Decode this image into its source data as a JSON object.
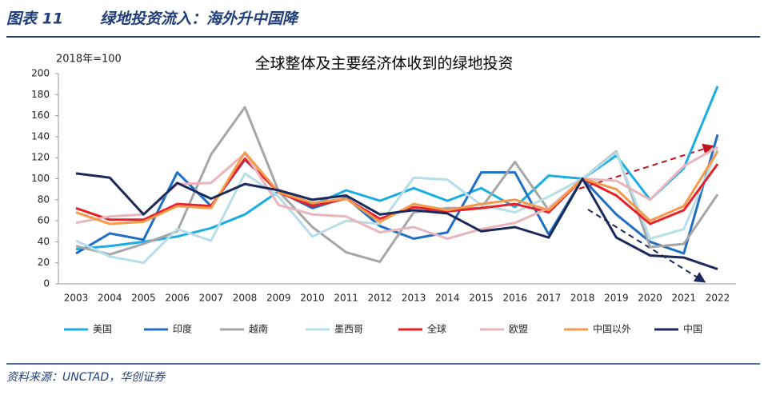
{
  "header": {
    "label": "图表 11",
    "title": "绿地投资流入：海外升中国降"
  },
  "source": "资料来源：UNCTAD，华创证券",
  "chart_data": {
    "type": "line",
    "title": "全球整体及主要经济体收到的绿地投资",
    "unit_label": "2018年=100",
    "categories": [
      "2003",
      "2004",
      "2005",
      "2006",
      "2007",
      "2008",
      "2009",
      "2010",
      "2011",
      "2012",
      "2013",
      "2014",
      "2015",
      "2016",
      "2017",
      "2018",
      "2019",
      "2020",
      "2021",
      "2022"
    ],
    "ylim": [
      0,
      200
    ],
    "yticks": [
      0,
      20,
      40,
      60,
      80,
      100,
      120,
      140,
      160,
      180,
      200
    ],
    "legend": "bottom",
    "series": [
      {
        "name": "美国",
        "color": "#1aade4",
        "values": [
          33,
          36,
          40,
          45,
          53,
          66,
          88,
          75,
          89,
          79,
          91,
          79,
          91,
          73,
          103,
          100,
          122,
          80,
          110,
          188
        ]
      },
      {
        "name": "印度",
        "color": "#1f6fc5",
        "values": [
          29,
          48,
          42,
          106,
          74,
          118,
          88,
          72,
          82,
          55,
          43,
          49,
          106,
          106,
          47,
          100,
          66,
          40,
          29,
          142
        ]
      },
      {
        "name": "越南",
        "color": "#a6a6a6",
        "values": [
          36,
          28,
          38,
          50,
          123,
          168,
          88,
          54,
          30,
          21,
          68,
          72,
          72,
          116,
          70,
          100,
          126,
          35,
          38,
          85
        ]
      },
      {
        "name": "墨西哥",
        "color": "#b7dee8",
        "values": [
          41,
          26,
          20,
          52,
          41,
          105,
          83,
          45,
          60,
          57,
          101,
          99,
          75,
          68,
          83,
          100,
          125,
          43,
          52,
          128
        ]
      },
      {
        "name": "全球",
        "color": "#e8202a",
        "values": [
          72,
          61,
          61,
          76,
          74,
          119,
          87,
          74,
          81,
          62,
          73,
          69,
          72,
          76,
          68,
          100,
          84,
          57,
          70,
          114
        ]
      },
      {
        "name": "欧盟",
        "color": "#e8b5bc",
        "values": [
          58,
          64,
          66,
          95,
          96,
          124,
          75,
          66,
          64,
          49,
          54,
          43,
          52,
          58,
          72,
          100,
          98,
          80,
          112,
          130
        ]
      },
      {
        "name": "中国以外",
        "color": "#f59a4a",
        "values": [
          68,
          57,
          59,
          74,
          72,
          125,
          87,
          77,
          81,
          59,
          76,
          70,
          76,
          80,
          70,
          100,
          90,
          60,
          74,
          126
        ]
      },
      {
        "name": "中国",
        "color": "#1b2a5a",
        "values": [
          105,
          101,
          66,
          96,
          81,
          95,
          89,
          80,
          84,
          66,
          70,
          67,
          50,
          54,
          44,
          100,
          44,
          27,
          25,
          14
        ]
      }
    ]
  }
}
